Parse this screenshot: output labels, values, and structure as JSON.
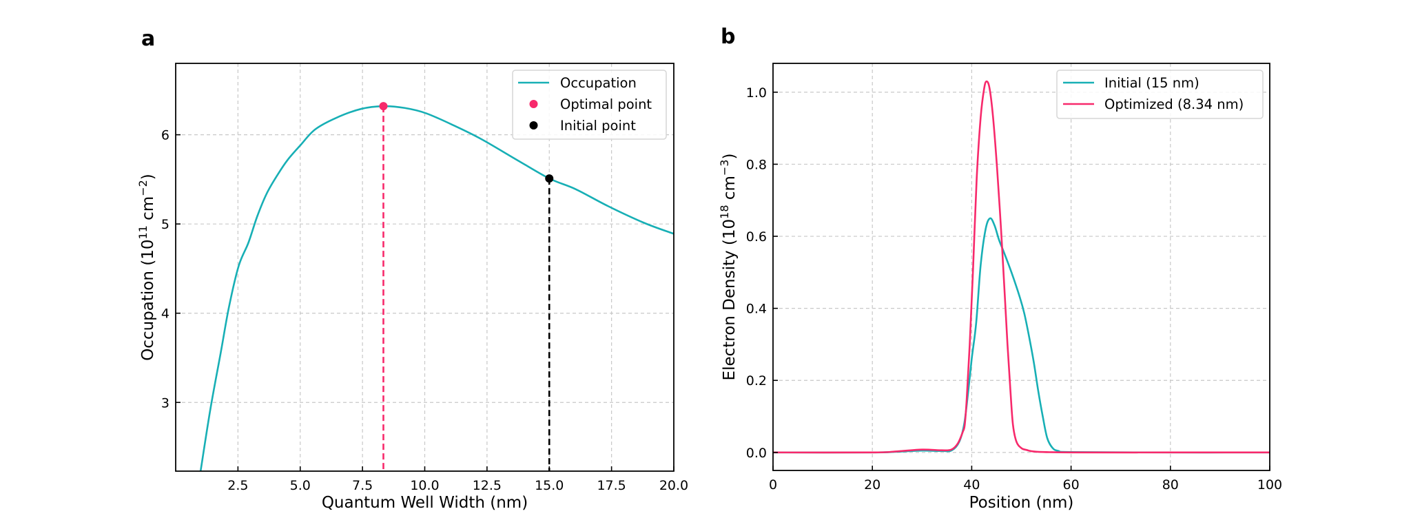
{
  "figure": {
    "colors": {
      "teal": "#17AFB5",
      "pink": "#F7296B",
      "black": "#000000",
      "grid": "#c8c8c8"
    }
  },
  "chart_data": [
    {
      "type": "line",
      "panel_label": "a",
      "title": "",
      "xlabel": "Quantum Well Width (nm)",
      "ylabel_main": "Occupation (10",
      "ylabel_sup1": "11",
      "ylabel_mid": " cm",
      "ylabel_sup2": "−2",
      "ylabel_end": ")",
      "xlim": [
        0.0,
        20.0
      ],
      "ylim": [
        2.23,
        6.8
      ],
      "grid": true,
      "xticks": [
        2.5,
        5.0,
        7.5,
        10.0,
        12.5,
        15.0,
        17.5,
        20.0
      ],
      "xtick_labels": [
        "2.5",
        "5.0",
        "7.5",
        "10.0",
        "12.5",
        "15.0",
        "17.5",
        "20.0"
      ],
      "yticks": [
        3,
        4,
        5,
        6
      ],
      "ytick_labels": [
        "3",
        "4",
        "5",
        "6"
      ],
      "legend_position": "top-right",
      "legend": [
        {
          "label": "Occupation",
          "kind": "line",
          "color": "#17AFB5"
        },
        {
          "label": "Optimal point",
          "kind": "dot",
          "color": "#F7296B"
        },
        {
          "label": "Initial point",
          "kind": "dot",
          "color": "#000000"
        }
      ],
      "series": [
        {
          "name": "Occupation",
          "color": "#17AFB5",
          "x": [
            1.0,
            1.39,
            1.81,
            2.14,
            2.53,
            2.92,
            3.28,
            3.67,
            4.11,
            4.5,
            5.0,
            5.6,
            6.45,
            7.45,
            8.34,
            9.2,
            10.06,
            11.2,
            12.28,
            13.75,
            15.0,
            16.06,
            17.36,
            18.83,
            20.0
          ],
          "y": [
            2.23,
            2.92,
            3.56,
            4.07,
            4.53,
            4.79,
            5.09,
            5.35,
            5.56,
            5.72,
            5.88,
            6.06,
            6.19,
            6.29,
            6.32,
            6.3,
            6.24,
            6.1,
            5.95,
            5.71,
            5.51,
            5.39,
            5.2,
            5.01,
            4.89
          ]
        }
      ],
      "markers": [
        {
          "name": "Optimal point",
          "x": 8.34,
          "y": 6.32,
          "color": "#F7296B",
          "dropline": "dashed"
        },
        {
          "name": "Initial point",
          "x": 15.0,
          "y": 5.51,
          "color": "#000000",
          "dropline": "dashed"
        }
      ]
    },
    {
      "type": "line",
      "panel_label": "b",
      "title": "",
      "xlabel": "Position (nm)",
      "ylabel_main": "Electron Density (10",
      "ylabel_sup1": "18",
      "ylabel_mid": " cm",
      "ylabel_sup2": "−3",
      "ylabel_end": ")",
      "xlim": [
        0,
        100
      ],
      "ylim": [
        -0.05,
        1.08
      ],
      "grid": true,
      "xticks": [
        0,
        20,
        40,
        60,
        80,
        100
      ],
      "xtick_labels": [
        "0",
        "20",
        "40",
        "60",
        "80",
        "100"
      ],
      "yticks": [
        0.0,
        0.2,
        0.4,
        0.6,
        0.8,
        1.0
      ],
      "ytick_labels": [
        "0.0",
        "0.2",
        "0.4",
        "0.6",
        "0.8",
        "1.0"
      ],
      "legend_position": "top-right",
      "legend": [
        {
          "label": "Initial (15 nm)",
          "kind": "line",
          "color": "#17AFB5"
        },
        {
          "label": "Optimized (8.34 nm)",
          "kind": "line",
          "color": "#F7296B"
        }
      ],
      "series": [
        {
          "name": "Initial (15 nm)",
          "color": "#17AFB5",
          "x": [
            0,
            20,
            25,
            30,
            34,
            36,
            37.5,
            38.5,
            39.3,
            40.0,
            40.9,
            41.8,
            42.8,
            43.7,
            44.6,
            45.5,
            46.5,
            48.0,
            49.7,
            50.6,
            51.5,
            52.5,
            53.4,
            54.3,
            55.2,
            56.3,
            57.5,
            60,
            80,
            100
          ],
          "y": [
            0,
            0,
            0.002,
            0.005,
            0.004,
            0.006,
            0.03,
            0.08,
            0.17,
            0.26,
            0.36,
            0.52,
            0.62,
            0.65,
            0.63,
            0.59,
            0.555,
            0.5,
            0.43,
            0.385,
            0.325,
            0.25,
            0.17,
            0.1,
            0.04,
            0.012,
            0.004,
            0.001,
            0,
            0
          ]
        },
        {
          "name": "Optimized (8.34 nm)",
          "color": "#F7296B",
          "x": [
            0,
            20,
            25,
            30,
            34,
            35.9,
            37.2,
            38.2,
            38.6,
            39.0,
            39.6,
            40.3,
            41.0,
            41.8,
            42.5,
            43.0,
            43.6,
            44.3,
            45.1,
            45.9,
            46.6,
            47.2,
            47.8,
            48.3,
            49.0,
            50.0,
            51.0,
            53,
            60,
            80,
            100
          ],
          "y": [
            0,
            0,
            0.003,
            0.008,
            0.006,
            0.008,
            0.025,
            0.057,
            0.077,
            0.15,
            0.3,
            0.52,
            0.76,
            0.93,
            1.01,
            1.03,
            1.01,
            0.93,
            0.79,
            0.62,
            0.45,
            0.3,
            0.17,
            0.077,
            0.03,
            0.012,
            0.007,
            0.002,
            0,
            0,
            0
          ]
        }
      ]
    }
  ]
}
